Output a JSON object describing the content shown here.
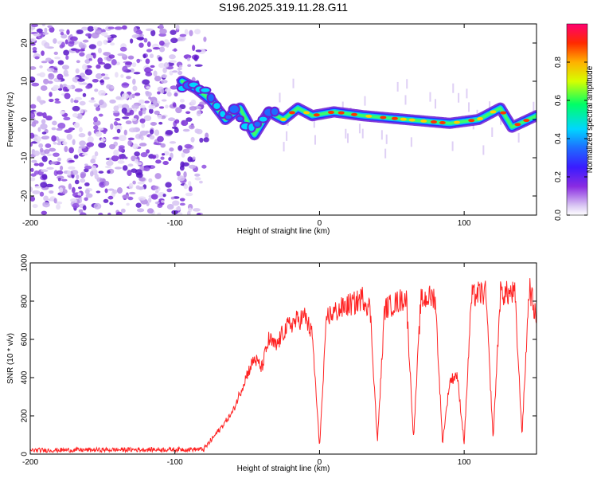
{
  "title": "S196.2025.319.11.28.G11",
  "chart_data": [
    {
      "type": "heatmap",
      "name": "spectrogram",
      "xlabel": "Height of straight line (km)",
      "ylabel": "Frequency (Hz)",
      "xlim": [
        -200,
        150
      ],
      "ylim": [
        -25,
        25
      ],
      "xticks": [
        -200,
        -100,
        0,
        100
      ],
      "yticks": [
        -20,
        -10,
        0,
        10,
        20
      ],
      "colorbar": {
        "label": "Normalized spectral amplitude",
        "range": [
          0,
          1
        ],
        "ticks": [
          0.0,
          0.2,
          0.4,
          0.6,
          0.8
        ]
      },
      "ridge": {
        "description_points": [
          [
            -95,
            10
          ],
          [
            -85,
            8
          ],
          [
            -75,
            5
          ],
          [
            -65,
            0
          ],
          [
            -55,
            3
          ],
          [
            -45,
            -4
          ],
          [
            -35,
            2
          ],
          [
            -25,
            0
          ],
          [
            -15,
            3
          ],
          [
            -5,
            1
          ],
          [
            10,
            2
          ],
          [
            30,
            1
          ],
          [
            60,
            0
          ],
          [
            90,
            -1
          ],
          [
            110,
            0
          ],
          [
            125,
            3
          ],
          [
            133,
            -2
          ],
          [
            150,
            1
          ]
        ]
      }
    },
    {
      "type": "line",
      "name": "snr",
      "xlabel": "Height of straight line (km)",
      "ylabel": "SNR (10 * v/v)",
      "xlim": [
        -200,
        150
      ],
      "ylim": [
        0,
        1000
      ],
      "xticks": [
        -200,
        -100,
        0,
        100
      ],
      "yticks": [
        0,
        200,
        400,
        600,
        800,
        1000
      ],
      "color": "#ff2222",
      "x": [
        -200,
        -80,
        -70,
        -60,
        -55,
        -50,
        -45,
        -40,
        -35,
        -30,
        -25,
        -20,
        -15,
        -10,
        -5,
        0,
        5,
        10,
        15,
        20,
        25,
        30,
        35,
        40,
        45,
        50,
        55,
        60,
        65,
        70,
        75,
        80,
        85,
        90,
        95,
        100,
        105,
        110,
        115,
        120,
        125,
        130,
        135,
        140,
        145,
        150
      ],
      "values": [
        20,
        25,
        120,
        220,
        320,
        420,
        500,
        450,
        600,
        560,
        640,
        680,
        700,
        720,
        620,
        40,
        720,
        740,
        760,
        780,
        790,
        820,
        760,
        60,
        760,
        780,
        800,
        820,
        80,
        800,
        820,
        820,
        60,
        380,
        420,
        60,
        820,
        840,
        840,
        80,
        840,
        840,
        840,
        100,
        880,
        700
      ]
    }
  ]
}
